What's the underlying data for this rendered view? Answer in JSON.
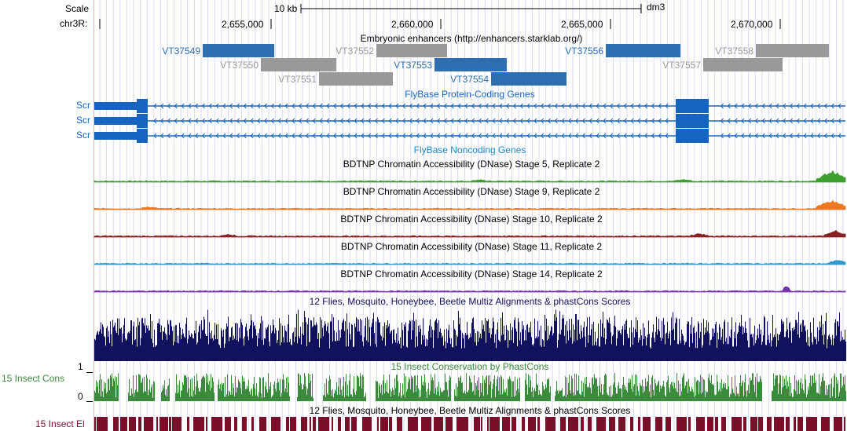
{
  "labels": {
    "scale": "Scale",
    "chrom": "chr3R:",
    "scalebar": "10 kb",
    "assembly": "dm3"
  },
  "positions": [
    "2,655,000",
    "2,660,000",
    "2,665,000",
    "2,670,000"
  ],
  "tracks": {
    "enhancers": {
      "title": "Embryonic enhancers (http://enhancers.starklab.org/)",
      "items": [
        {
          "name": "VT37549",
          "active": true
        },
        {
          "name": "VT37550",
          "active": false
        },
        {
          "name": "VT37551",
          "active": false
        },
        {
          "name": "VT37552",
          "active": false
        },
        {
          "name": "VT37553",
          "active": true
        },
        {
          "name": "VT37554",
          "active": true
        },
        {
          "name": "VT37556",
          "active": true
        },
        {
          "name": "VT37557",
          "active": false
        },
        {
          "name": "VT37558",
          "active": false
        }
      ]
    },
    "genes": {
      "title": "FlyBase Protein-Coding Genes",
      "labels": [
        "Scr",
        "Scr",
        "Scr"
      ]
    },
    "noncoding": {
      "title": "FlyBase Noncoding Genes"
    },
    "dnase": [
      {
        "title": "BDTNP Chromatin Accessibility (DNase) Stage 5, Replicate 2",
        "color": "#3ca02c"
      },
      {
        "title": "BDTNP Chromatin Accessibility (DNase) Stage 9, Replicate 2",
        "color": "#ee7722"
      },
      {
        "title": "BDTNP Chromatin Accessibility (DNase) Stage 10, Replicate 2",
        "color": "#882222"
      },
      {
        "title": "BDTNP Chromatin Accessibility (DNase) Stage 11, Replicate 2",
        "color": "#3399cc"
      },
      {
        "title": "BDTNP Chromatin Accessibility (DNase) Stage 14, Replicate 2",
        "color": "#7733aa"
      }
    ],
    "multiz": {
      "title": "12 Flies, Mosquito, Honeybee, Beetle Multiz Alignments & phastCons Scores",
      "color": "#11115e"
    },
    "phastcons": {
      "title": "15 Insect Conservation by PhastCons",
      "label": "15 Insect Cons",
      "tick_max": "1",
      "tick_min": "0",
      "color": "#3c8a3c"
    },
    "elements": {
      "title": "12 Flies, Mosquito, Honeybee, Beetle Multiz Alignments & phastCons Scores",
      "label": "15 Insect El",
      "color": "#7a0f2a"
    }
  },
  "colors": {
    "active": "#2e6eb0",
    "inactive": "#999999",
    "gene": "#1565c0",
    "text": "#000000"
  }
}
